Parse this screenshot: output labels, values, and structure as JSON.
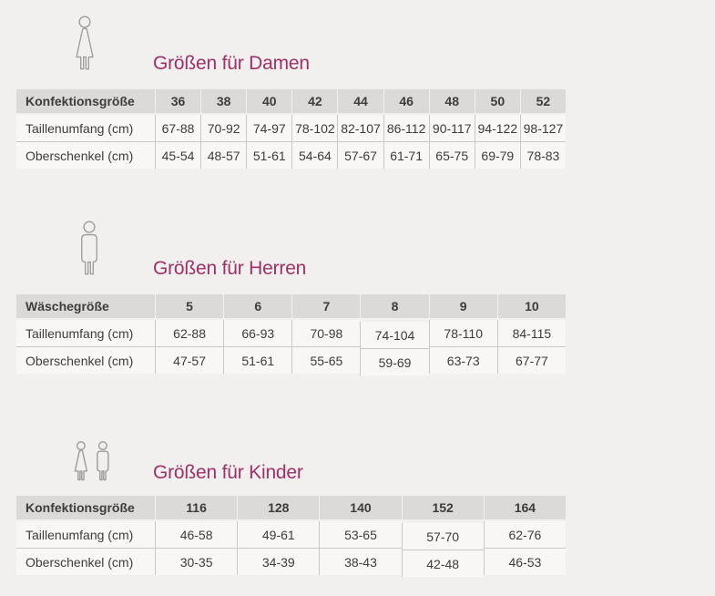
{
  "page": {
    "background_color": "#f1f0ee",
    "accent_color": "#9e3166",
    "header_row_color": "#dbdad9",
    "border_color": "#c9c8c6",
    "text_color": "#3d3c3b",
    "icon_color": "#9c9b9a"
  },
  "sections": [
    {
      "id": "damen",
      "title": "Größen für Damen",
      "icon": "woman-icon",
      "table": {
        "row_header": "Konfektionsgröße",
        "columns": [
          "36",
          "38",
          "40",
          "42",
          "44",
          "46",
          "48",
          "50",
          "52"
        ],
        "rows": [
          {
            "label": "Taillenumfang (cm)",
            "values": [
              "67-88",
              "70-92",
              "74-97",
              "78-102",
              "82-107",
              "86-112",
              "90-117",
              "94-122",
              "98-127"
            ]
          },
          {
            "label": "Oberschenkel (cm)",
            "values": [
              "45-54",
              "48-57",
              "51-61",
              "54-64",
              "57-67",
              "61-71",
              "65-75",
              "69-79",
              "78-83"
            ]
          }
        ]
      }
    },
    {
      "id": "herren",
      "title": "Größen für Herren",
      "icon": "man-icon",
      "table": {
        "row_header": "Wäschegröße",
        "columns": [
          "5",
          "6",
          "7",
          "8",
          "9",
          "10"
        ],
        "rows": [
          {
            "label": "Taillenumfang (cm)",
            "values": [
              "62-88",
              "66-93",
              "70-98",
              "74-104",
              "78-110",
              "84-115"
            ]
          },
          {
            "label": "Oberschenkel (cm)",
            "values": [
              "47-57",
              "51-61",
              "55-65",
              "59-69",
              "63-73",
              "67-77"
            ]
          }
        ]
      }
    },
    {
      "id": "kinder",
      "title": "Größen für Kinder",
      "icon": "children-icon",
      "table": {
        "row_header": "Konfektionsgröße",
        "columns": [
          "116",
          "128",
          "140",
          "152",
          "164"
        ],
        "rows": [
          {
            "label": "Taillenumfang (cm)",
            "values": [
              "46-58",
              "49-61",
              "53-65",
              "57-70",
              "62-76"
            ]
          },
          {
            "label": "Oberschenkel (cm)",
            "values": [
              "30-35",
              "34-39",
              "38-43",
              "42-48",
              "46-53"
            ]
          }
        ]
      }
    }
  ]
}
